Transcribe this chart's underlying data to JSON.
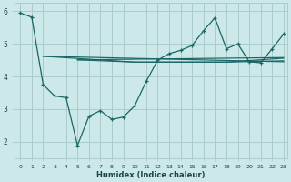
{
  "xlabel": "Humidex (Indice chaleur)",
  "bg_color": "#cce8e8",
  "grid_color": "#aacccc",
  "line_color": "#1a6666",
  "xlim": [
    -0.5,
    23.3
  ],
  "ylim": [
    1.5,
    6.25
  ],
  "yticks": [
    2,
    3,
    4,
    5,
    6
  ],
  "xticks": [
    0,
    1,
    2,
    3,
    4,
    5,
    6,
    7,
    8,
    9,
    10,
    11,
    12,
    13,
    14,
    15,
    16,
    17,
    18,
    19,
    20,
    21,
    22,
    23
  ],
  "main_line": {
    "x": [
      0,
      1,
      2,
      3,
      4,
      5,
      6,
      7,
      8,
      9,
      10,
      11,
      12,
      13,
      14,
      15,
      16,
      17,
      18,
      19,
      20,
      21,
      22,
      23
    ],
    "y": [
      5.95,
      5.82,
      3.75,
      3.4,
      3.35,
      1.88,
      2.78,
      2.95,
      2.68,
      2.75,
      3.1,
      3.85,
      4.5,
      4.7,
      4.8,
      4.95,
      5.4,
      5.8,
      4.85,
      5.0,
      4.45,
      4.42,
      4.85,
      5.3
    ]
  },
  "trend_lines": [
    {
      "x": [
        2,
        23
      ],
      "y": [
        4.62,
        4.45
      ]
    },
    {
      "x": [
        2,
        10,
        18,
        23
      ],
      "y": [
        4.62,
        4.44,
        4.44,
        4.48
      ]
    },
    {
      "x": [
        5,
        10,
        18,
        23
      ],
      "y": [
        4.51,
        4.44,
        4.44,
        4.56
      ]
    },
    {
      "x": [
        5,
        23
      ],
      "y": [
        4.51,
        4.58
      ]
    }
  ]
}
